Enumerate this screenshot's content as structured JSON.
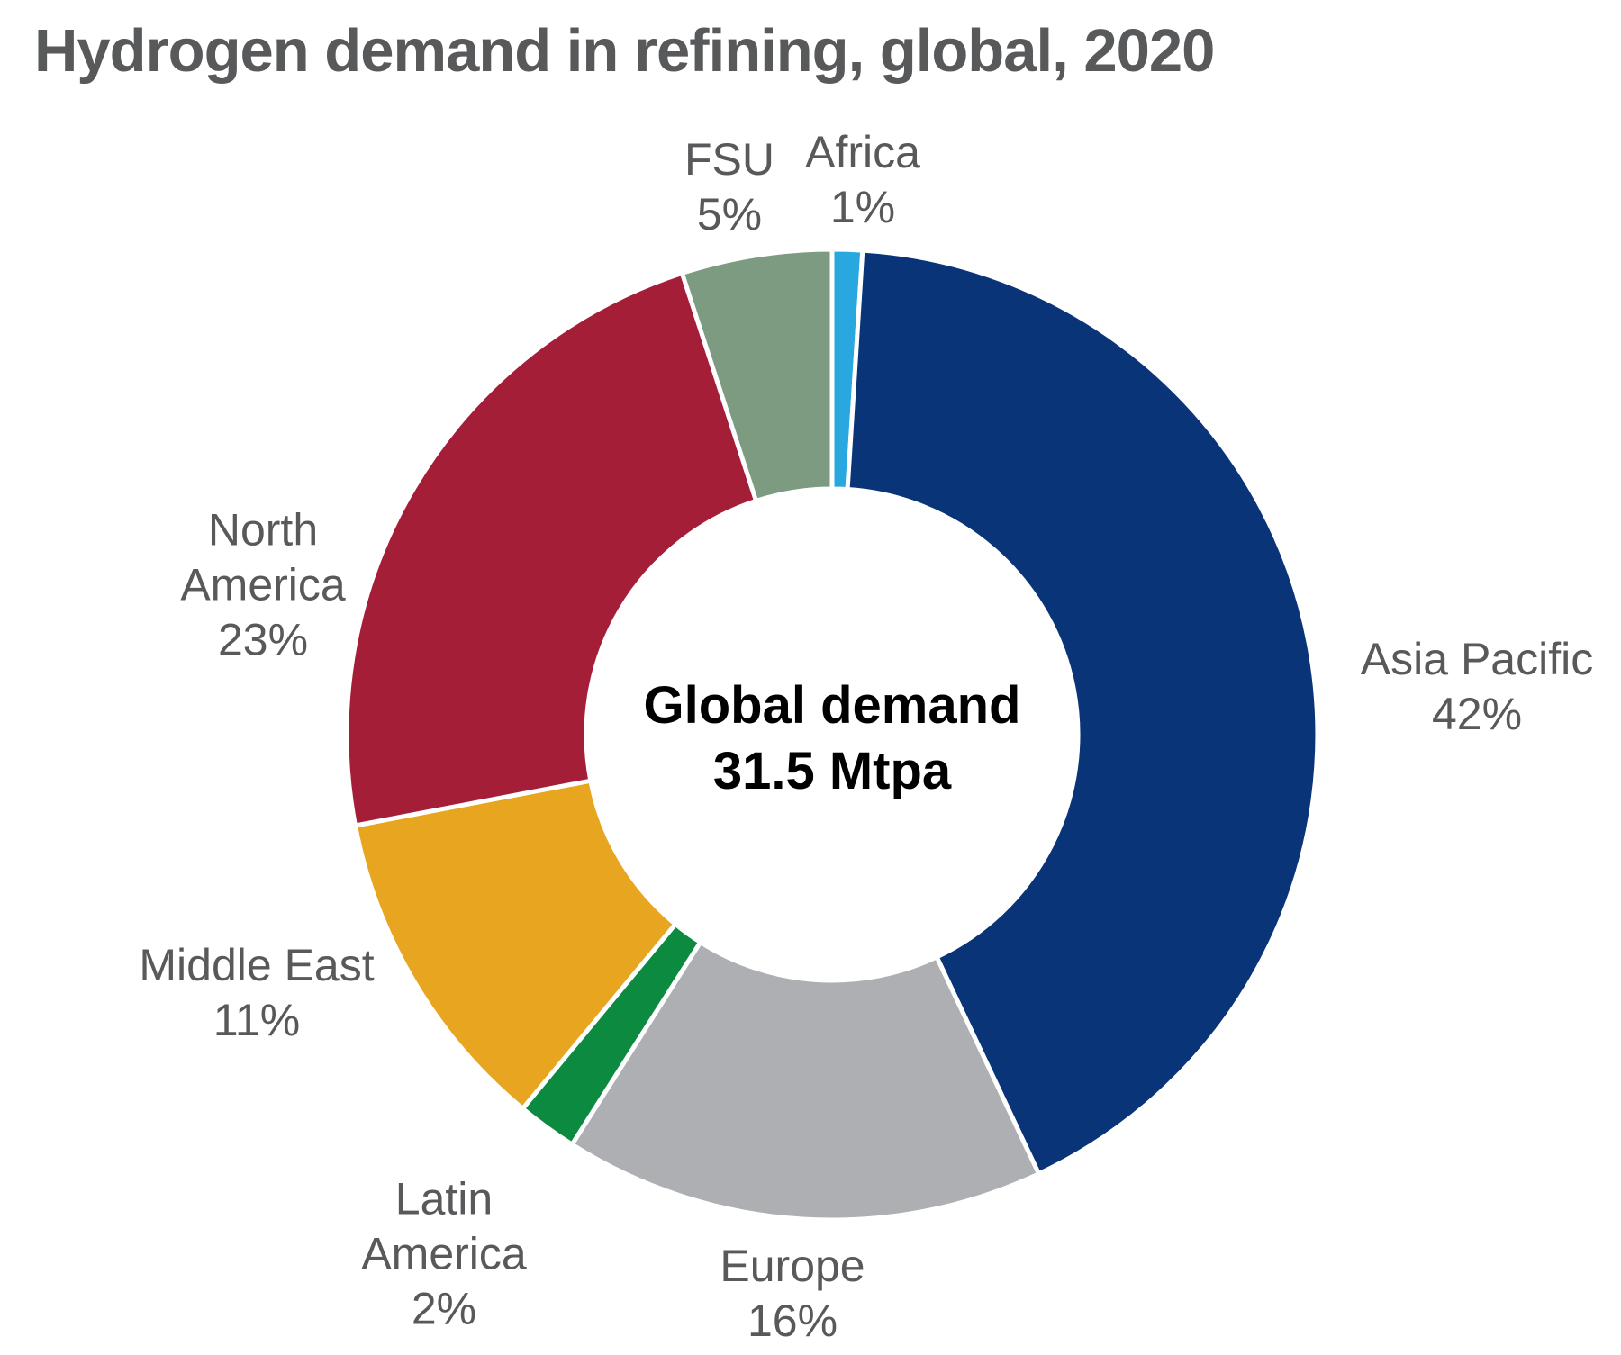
{
  "title": "Hydrogen demand in refining, global, 2020",
  "chart_data": {
    "type": "pie",
    "subtype": "donut",
    "title": "Hydrogen demand in refining, global, 2020",
    "unit": "%",
    "total_label": "Global demand",
    "total_value": "31.5 Mtpa",
    "center_label": {
      "line1": "Global demand",
      "line2": "31.5 Mtpa"
    },
    "start_angle_deg": 0,
    "direction": "clockwise",
    "donut_hole_ratio": 0.5,
    "slice_gap_color": "#ffffff",
    "segments": [
      {
        "label": "Africa",
        "value": 1,
        "pct": "1%",
        "color": "#29A8E0"
      },
      {
        "label": "Asia Pacific",
        "value": 42,
        "pct": "42%",
        "color": "#0A3478"
      },
      {
        "label": "Europe",
        "value": 16,
        "pct": "16%",
        "color": "#AEAFB2"
      },
      {
        "label": "Latin America",
        "value": 2,
        "pct": "2%",
        "color": "#0C8B40"
      },
      {
        "label": "Middle East",
        "value": 11,
        "pct": "11%",
        "color": "#E8A520"
      },
      {
        "label": "North America",
        "value": 23,
        "pct": "23%",
        "color": "#A41E38"
      },
      {
        "label": "FSU",
        "value": 5,
        "pct": "5%",
        "color": "#7C9B80"
      }
    ]
  },
  "labels": {
    "fsu": [
      "FSU",
      "5%"
    ],
    "africa": [
      "Africa",
      "1%"
    ],
    "asia_pacific": [
      "Asia Pacific",
      "42%"
    ],
    "north_america": [
      "North",
      "America",
      "23%"
    ],
    "middle_east": [
      "Middle East",
      "11%"
    ],
    "latin_america": [
      "Latin",
      "America",
      "2%"
    ],
    "europe": [
      "Europe",
      "16%"
    ]
  },
  "colors": {
    "title_text": "#58595B",
    "label_text": "#58595B",
    "center_text": "#000000",
    "background": "#ffffff"
  }
}
